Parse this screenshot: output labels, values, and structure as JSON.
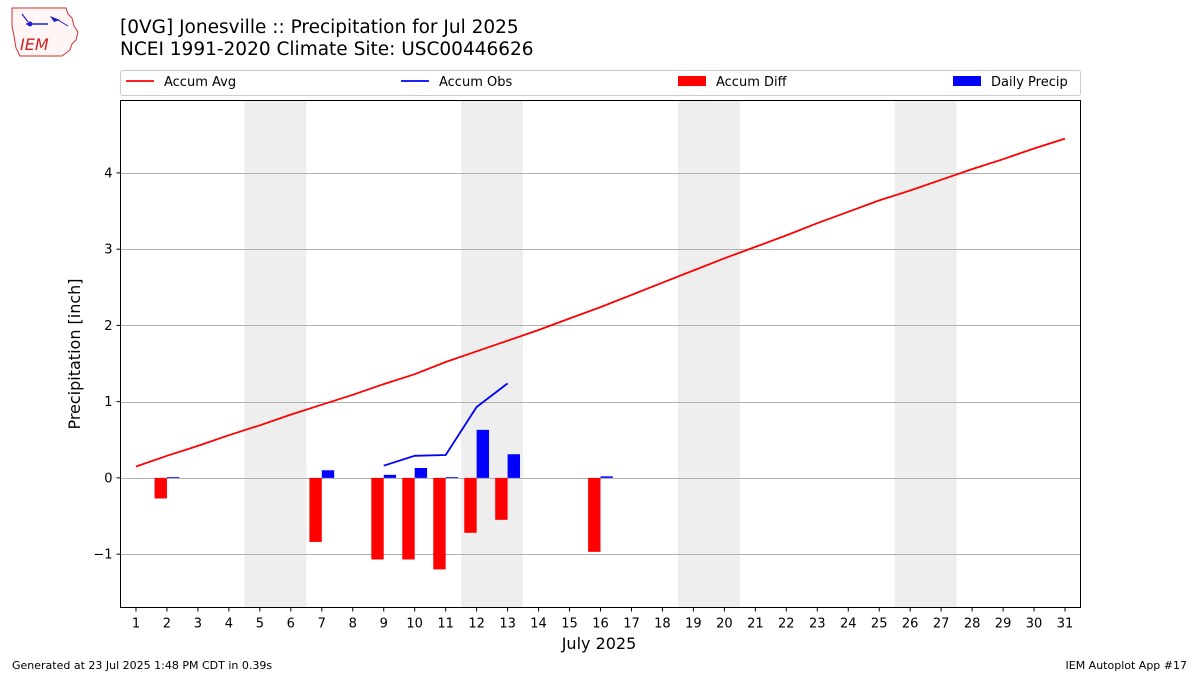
{
  "header": {
    "logo_text": "IEM",
    "title_line1": "[0VG] Jonesville :: Precipitation for Jul 2025",
    "title_line2": "NCEI 1991-2020 Climate Site: USC00446626"
  },
  "footer": {
    "generated": "Generated at 23 Jul 2025 1:48 PM CDT in 0.39s",
    "app": "IEM Autoplot App #17"
  },
  "colors": {
    "accum_avg": "#ff0000",
    "accum_obs": "#0000ff",
    "accum_diff": "#ff0000",
    "daily_precip": "#0000ff",
    "weekend_shade": "#eeeeee",
    "grid": "#b0b0b0"
  },
  "chart_data": {
    "type": "bar",
    "xlabel": "July 2025",
    "ylabel": "Precipitation [inch]",
    "xlim": [
      0.5,
      31.5
    ],
    "ylim": [
      -1.7,
      4.95
    ],
    "x_ticks": [
      1,
      2,
      3,
      4,
      5,
      6,
      7,
      8,
      9,
      10,
      11,
      12,
      13,
      14,
      15,
      16,
      17,
      18,
      19,
      20,
      21,
      22,
      23,
      24,
      25,
      26,
      27,
      28,
      29,
      30,
      31
    ],
    "y_ticks": [
      -1,
      0,
      1,
      2,
      3,
      4
    ],
    "y_tick_labels": [
      "−1",
      "0",
      "1",
      "2",
      "3",
      "4"
    ],
    "grid": "horizontal",
    "legend_position": "top",
    "weekend_shading": [
      [
        4.5,
        6.5
      ],
      [
        11.5,
        13.5
      ],
      [
        18.5,
        20.5
      ],
      [
        25.5,
        27.5
      ]
    ],
    "series": [
      {
        "name": "Accum Avg",
        "kind": "line",
        "x": [
          1,
          2,
          3,
          4,
          5,
          6,
          7,
          8,
          9,
          10,
          11,
          12,
          13,
          14,
          15,
          16,
          17,
          18,
          19,
          20,
          21,
          22,
          23,
          24,
          25,
          26,
          27,
          28,
          29,
          30,
          31
        ],
        "values": [
          0.15,
          0.29,
          0.42,
          0.56,
          0.69,
          0.83,
          0.96,
          1.09,
          1.23,
          1.36,
          1.52,
          1.66,
          1.8,
          1.94,
          2.09,
          2.24,
          2.4,
          2.56,
          2.72,
          2.88,
          3.03,
          3.18,
          3.34,
          3.49,
          3.64,
          3.77,
          3.91,
          4.05,
          4.18,
          4.32,
          4.45
        ]
      },
      {
        "name": "Accum Obs",
        "kind": "line",
        "x": [
          9,
          10,
          11,
          12,
          13
        ],
        "values": [
          0.16,
          0.29,
          0.3,
          0.93,
          1.24
        ]
      },
      {
        "name": "Accum Diff",
        "kind": "bar",
        "x": [
          2,
          7,
          9,
          10,
          11,
          12,
          13,
          16
        ],
        "values": [
          -0.27,
          -0.84,
          -1.07,
          -1.07,
          -1.2,
          -0.72,
          -0.55,
          -0.97
        ]
      },
      {
        "name": "Daily Precip",
        "kind": "bar",
        "x": [
          2,
          7,
          9,
          10,
          11,
          12,
          13,
          16
        ],
        "values": [
          0.01,
          0.1,
          0.04,
          0.13,
          0.01,
          0.63,
          0.31,
          0.02
        ]
      }
    ]
  }
}
